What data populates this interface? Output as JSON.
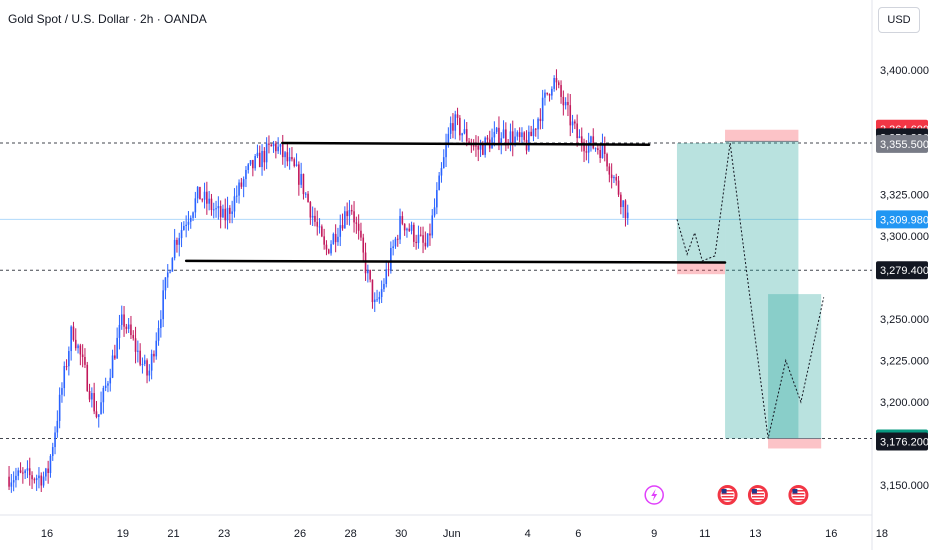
{
  "header": {
    "title": "Gold Spot / U.S. Dollar · 2h · OANDA",
    "currency": "USD"
  },
  "chart_data": {
    "type": "candlestick",
    "price_ticks": [
      3400,
      3325,
      3300,
      3250,
      3225,
      3200,
      3150
    ],
    "price_tick_labels": [
      "3,400.000",
      "3,325.000",
      "3,300.000",
      "3,250.000",
      "3,225.000",
      "3,200.000",
      "3,150.000"
    ],
    "time_ticks": [
      {
        "day": 0,
        "label": "16"
      },
      {
        "day": 3,
        "label": "19"
      },
      {
        "day": 5,
        "label": "21"
      },
      {
        "day": 7,
        "label": "23"
      },
      {
        "day": 10,
        "label": "26"
      },
      {
        "day": 12,
        "label": "28"
      },
      {
        "day": 14,
        "label": "30"
      },
      {
        "day": 16,
        "label": "Jun"
      },
      {
        "day": 19,
        "label": "4"
      },
      {
        "day": 21,
        "label": "6"
      },
      {
        "day": 24,
        "label": "9"
      },
      {
        "day": 26,
        "label": "11"
      },
      {
        "day": 28,
        "label": "13"
      },
      {
        "day": 31,
        "label": "16"
      },
      {
        "day": 33,
        "label": "18"
      }
    ],
    "price_badges": [
      {
        "value": 3364.6,
        "label": "3,364.600",
        "bg": "#f23645",
        "fg": "#ffffff"
      },
      {
        "value": 3359.39,
        "label": "3,359.390",
        "bg": "#131722",
        "fg": "#ffffff"
      },
      {
        "value": 3355.5,
        "label": "3,355.500",
        "bg": "#787b86",
        "fg": "#ffffff"
      },
      {
        "value": 3309.98,
        "label": "3,309.980",
        "bg": "#2196f3",
        "fg": "#ffffff"
      },
      {
        "value": 3279.4,
        "label": "3,279.400",
        "bg": "#131722",
        "fg": "#ffffff"
      },
      {
        "value": 3178.0,
        "label": "3,178.000",
        "bg": "#089981",
        "fg": "#ffffff"
      },
      {
        "value": 3176.2,
        "label": "3,176.200",
        "bg": "#131722",
        "fg": "#ffffff"
      }
    ],
    "horizontal_dashed_levels": [
      3356,
      3279.4,
      3178
    ],
    "current_price_line": 3309.98,
    "trendlines": [
      {
        "x1": 9.3,
        "y1": 3356,
        "x2": 23.8,
        "y2": 3355
      },
      {
        "x1": 5.5,
        "y1": 3285,
        "x2": 26.8,
        "y2": 3284
      }
    ],
    "positions": [
      {
        "x1": 24.9,
        "x2": 26.8,
        "entry": 3284,
        "target": 3356,
        "stop": 3277
      },
      {
        "x1": 26.8,
        "x2": 29.7,
        "entry": 3357,
        "target": 3178,
        "stop": 3364
      },
      {
        "x1": 28.5,
        "x2": 30.6,
        "entry": 3178,
        "target": 3265,
        "stop": 3172
      }
    ],
    "projection_path": [
      {
        "x": 24.9,
        "y": 3310
      },
      {
        "x": 25.3,
        "y": 3289
      },
      {
        "x": 25.6,
        "y": 3302
      },
      {
        "x": 25.9,
        "y": 3285
      },
      {
        "x": 26.4,
        "y": 3288
      },
      {
        "x": 27.0,
        "y": 3356
      },
      {
        "x": 28.5,
        "y": 3178
      },
      {
        "x": 29.2,
        "y": 3225
      },
      {
        "x": 29.8,
        "y": 3200
      },
      {
        "x": 30.7,
        "y": 3263
      }
    ],
    "event_markers": [
      {
        "x": 24.0,
        "kind": "lightning"
      },
      {
        "x": 26.9,
        "kind": "us-flag"
      },
      {
        "x": 28.1,
        "kind": "us-flag"
      },
      {
        "x": 29.7,
        "kind": "us-flag"
      }
    ],
    "price_anchors": [
      {
        "day": 0,
        "price": 3155
      },
      {
        "day": 1,
        "price": 3245
      },
      {
        "day": 2,
        "price": 3190
      },
      {
        "day": 3,
        "price": 3250
      },
      {
        "day": 4,
        "price": 3215
      },
      {
        "day": 5,
        "price": 3295
      },
      {
        "day": 6,
        "price": 3325
      },
      {
        "day": 7,
        "price": 3310
      },
      {
        "day": 8,
        "price": 3340
      },
      {
        "day": 9,
        "price": 3355
      },
      {
        "day": 10,
        "price": 3335
      },
      {
        "day": 11,
        "price": 3290
      },
      {
        "day": 12,
        "price": 3320
      },
      {
        "day": 13,
        "price": 3255
      },
      {
        "day": 14,
        "price": 3310
      },
      {
        "day": 15,
        "price": 3292
      },
      {
        "day": 16,
        "price": 3370
      },
      {
        "day": 17,
        "price": 3352
      },
      {
        "day": 18,
        "price": 3362
      },
      {
        "day": 19,
        "price": 3355
      },
      {
        "day": 20,
        "price": 3395
      },
      {
        "day": 21,
        "price": 3358
      },
      {
        "day": 22,
        "price": 3352
      },
      {
        "day": 23,
        "price": 3310
      }
    ]
  }
}
